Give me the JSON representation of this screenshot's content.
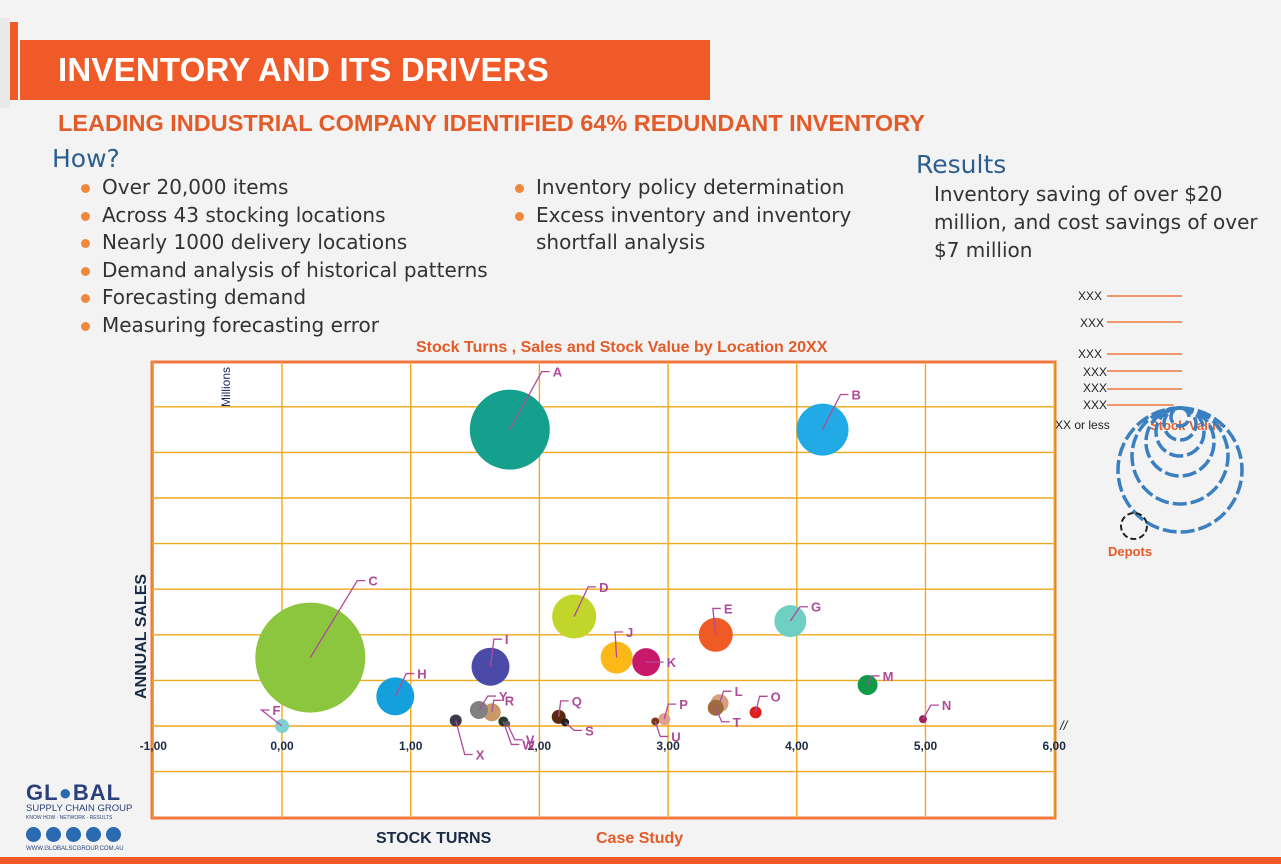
{
  "header": {
    "title": "INVENTORY AND ITS DRIVERS",
    "subtitle": "LEADING INDUSTRIAL COMPANY IDENTIFIED 64% REDUNDANT INVENTORY"
  },
  "how": {
    "heading": "How?",
    "left_items": [
      "Over 20,000 items",
      "Across 43 stocking locations",
      "Nearly 1000 delivery locations",
      "Demand analysis of historical patterns",
      "Forecasting demand",
      "Measuring forecasting error"
    ],
    "right_items": [
      "Inventory policy determination",
      "Excess inventory and inventory shortfall analysis"
    ]
  },
  "results": {
    "heading": "Results",
    "text": "Inventory saving of over $20 million, and cost savings of over $7 million"
  },
  "legend": {
    "size_labels": [
      "XXX",
      "XXX",
      "XXX",
      "XXX",
      "XXX",
      "XXX"
    ],
    "smallest_label": "XXX or less",
    "stock_value_label": "Stock Value",
    "depots_label": "Depots",
    "circle_color": "#3a7fc0"
  },
  "colors": {
    "accent": "#f05a28",
    "grid": "#f0a81e",
    "frame": "#f07840",
    "heading_blue": "#2c5f8e",
    "label_line": "#b04a9a"
  },
  "chart_data": {
    "type": "bubble",
    "title": "Stock Turns , Sales and Stock Value by Location 20XX",
    "xlabel": "STOCK TURNS",
    "ylabel": "ANNUAL SALES",
    "yunit": "Millions",
    "footnote": "Case Study",
    "xlim": [
      -1,
      6
    ],
    "x_ticks": [
      "-1,00",
      "0,00",
      "1,00",
      "2,00",
      "3,00",
      "4,00",
      "5,00",
      "6,00"
    ],
    "grid": true,
    "points": [
      {
        "label": "A",
        "x": 1.77,
        "y": 6.5,
        "size": 40,
        "color": "#14a08c"
      },
      {
        "label": "B",
        "x": 4.2,
        "y": 6.5,
        "size": 26,
        "color": "#22aae6"
      },
      {
        "label": "C",
        "x": 0.22,
        "y": 1.5,
        "size": 55,
        "color": "#8cc63e"
      },
      {
        "label": "D",
        "x": 2.27,
        "y": 2.4,
        "size": 22,
        "color": "#c2d52a"
      },
      {
        "label": "E",
        "x": 3.37,
        "y": 2.0,
        "size": 17,
        "color": "#f05a24"
      },
      {
        "label": "G",
        "x": 3.95,
        "y": 2.3,
        "size": 16,
        "color": "#6fcfc3"
      },
      {
        "label": "H",
        "x": 0.88,
        "y": 0.65,
        "size": 19,
        "color": "#14a0dc"
      },
      {
        "label": "I",
        "x": 1.62,
        "y": 1.3,
        "size": 19,
        "color": "#4b4aa8"
      },
      {
        "label": "J",
        "x": 2.6,
        "y": 1.5,
        "size": 16,
        "color": "#fbb817"
      },
      {
        "label": "K",
        "x": 2.83,
        "y": 1.4,
        "size": 14,
        "color": "#c8186c"
      },
      {
        "label": "M",
        "x": 4.55,
        "y": 0.9,
        "size": 10,
        "color": "#0f9a4a"
      },
      {
        "label": "F",
        "x": 0.0,
        "y": 0.0,
        "size": 7,
        "color": "#7fd0d2"
      },
      {
        "label": "R",
        "x": 1.63,
        "y": 0.3,
        "size": 9,
        "color": "#c89a6a"
      },
      {
        "label": "Y",
        "x": 1.53,
        "y": 0.35,
        "size": 9,
        "color": "#808080"
      },
      {
        "label": "Q",
        "x": 2.15,
        "y": 0.2,
        "size": 7,
        "color": "#5a2a10"
      },
      {
        "label": "S",
        "x": 2.2,
        "y": 0.08,
        "size": 4,
        "color": "#222222"
      },
      {
        "label": "X",
        "x": 1.35,
        "y": 0.12,
        "size": 6,
        "color": "#3a3a4a"
      },
      {
        "label": "W",
        "x": 1.72,
        "y": 0.1,
        "size": 5,
        "color": "#2a3a2a"
      },
      {
        "label": "V",
        "x": 1.75,
        "y": 0.05,
        "size": 3,
        "color": "#555555"
      },
      {
        "label": "P",
        "x": 2.97,
        "y": 0.15,
        "size": 6,
        "color": "#e0a090"
      },
      {
        "label": "U",
        "x": 2.9,
        "y": 0.1,
        "size": 4,
        "color": "#7a3a1a"
      },
      {
        "label": "L",
        "x": 3.4,
        "y": 0.5,
        "size": 9,
        "color": "#d6a080"
      },
      {
        "label": "T",
        "x": 3.37,
        "y": 0.4,
        "size": 8,
        "color": "#a06a40"
      },
      {
        "label": "O",
        "x": 3.68,
        "y": 0.3,
        "size": 6,
        "color": "#e0201a"
      },
      {
        "label": "N",
        "x": 4.98,
        "y": 0.15,
        "size": 4,
        "color": "#a0205a"
      }
    ]
  }
}
